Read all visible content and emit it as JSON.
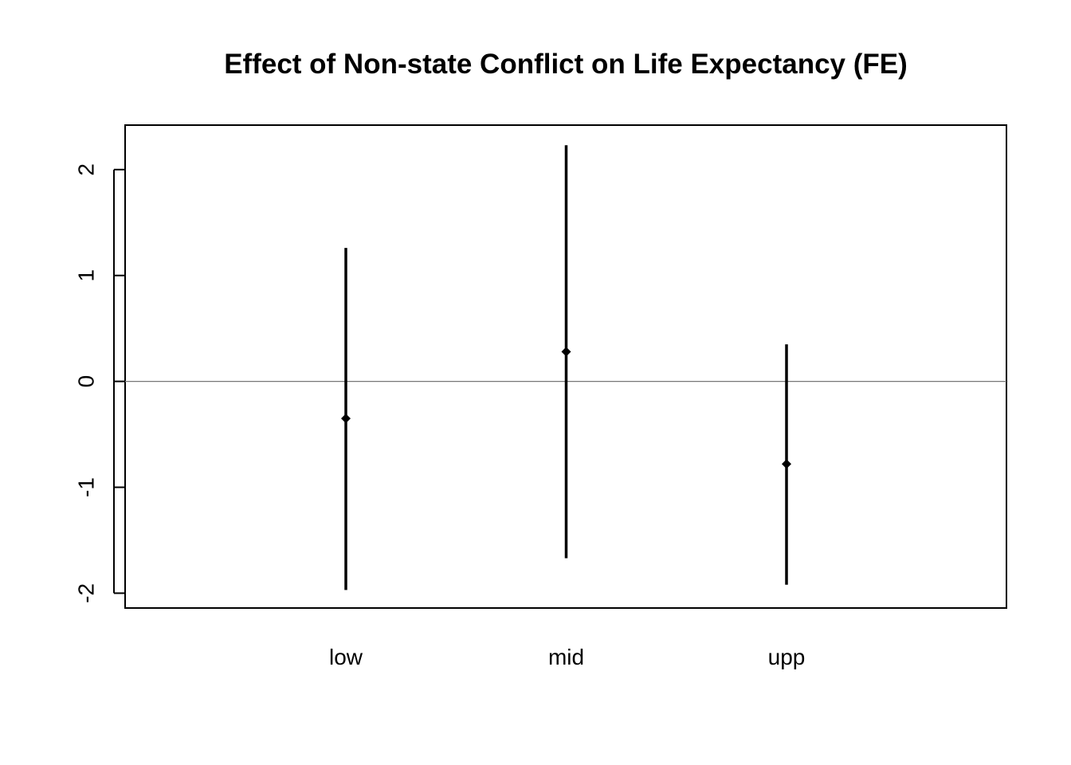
{
  "chart_data": {
    "type": "errorbar",
    "title": "Effect of Non-state Conflict on Life Expectancy (FE)",
    "xlabel": "",
    "ylabel": "",
    "categories": [
      "low",
      "mid",
      "upp"
    ],
    "estimates": [
      -0.35,
      0.28,
      -0.78
    ],
    "lower": [
      -1.97,
      -1.67,
      -1.92
    ],
    "upper": [
      1.26,
      2.23,
      0.35
    ],
    "ylim": [
      -2.14,
      2.42
    ],
    "yticks": [
      -2,
      -1,
      0,
      1,
      2
    ],
    "ytick_labels": [
      "-2",
      "-1",
      "0",
      "1",
      "2"
    ],
    "reference_line": 0,
    "grid": false,
    "legend": "none",
    "colors": {
      "bars": "#000000",
      "reference_line": "#777777",
      "frame": "#000000"
    }
  }
}
